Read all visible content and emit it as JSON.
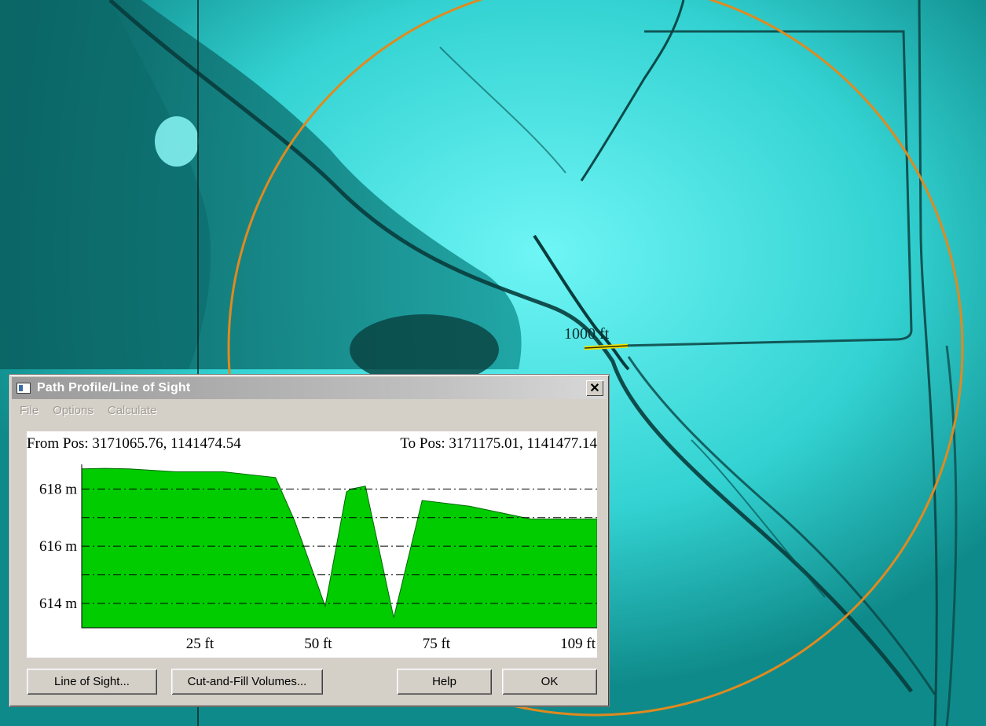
{
  "map": {
    "distance_label": "1000 ft",
    "colors": {
      "terrain_base": "#1fb3b3",
      "terrain_light": "#5ff0f0",
      "terrain_dark": "#0a4d4d",
      "range_circle": "#e08a1e",
      "marker": "#f0e000"
    }
  },
  "dialog": {
    "title": "Path Profile/Line of Sight",
    "close_icon": "close-icon",
    "menu": [
      "File",
      "Options",
      "Calculate"
    ],
    "from_pos": "From Pos: 3171065.76, 1141474.54",
    "to_pos": "To Pos: 3171175.01, 1141477.14",
    "buttons": {
      "line_of_sight": "Line of Sight...",
      "cut_and_fill": "Cut-and-Fill Volumes...",
      "help": "Help",
      "ok": "OK"
    }
  },
  "chart_data": {
    "type": "area",
    "x_unit": "ft",
    "y_unit": "m",
    "xlim": [
      0,
      109
    ],
    "ylim": [
      613.15,
      618.75
    ],
    "x": [
      0,
      5,
      10,
      20,
      30,
      41,
      45,
      50,
      51.5,
      56,
      57,
      60,
      66,
      72,
      82,
      95,
      109
    ],
    "y": [
      618.7,
      618.72,
      618.7,
      618.6,
      618.6,
      618.4,
      616.9,
      614.6,
      613.9,
      617.9,
      618.0,
      618.1,
      613.5,
      617.6,
      617.4,
      616.95,
      616.95
    ],
    "y_ticks": [
      614,
      616,
      618
    ],
    "y_tick_labels": [
      "614 m",
      "616 m",
      "618 m"
    ],
    "x_ticks": [
      25,
      50,
      75,
      109
    ],
    "x_tick_labels": [
      "25 ft",
      "50 ft",
      "75 ft",
      "109 ft"
    ],
    "gridlines": [
      614,
      615,
      616,
      617,
      618
    ],
    "fill_color": "#00cc00",
    "grid": true
  }
}
